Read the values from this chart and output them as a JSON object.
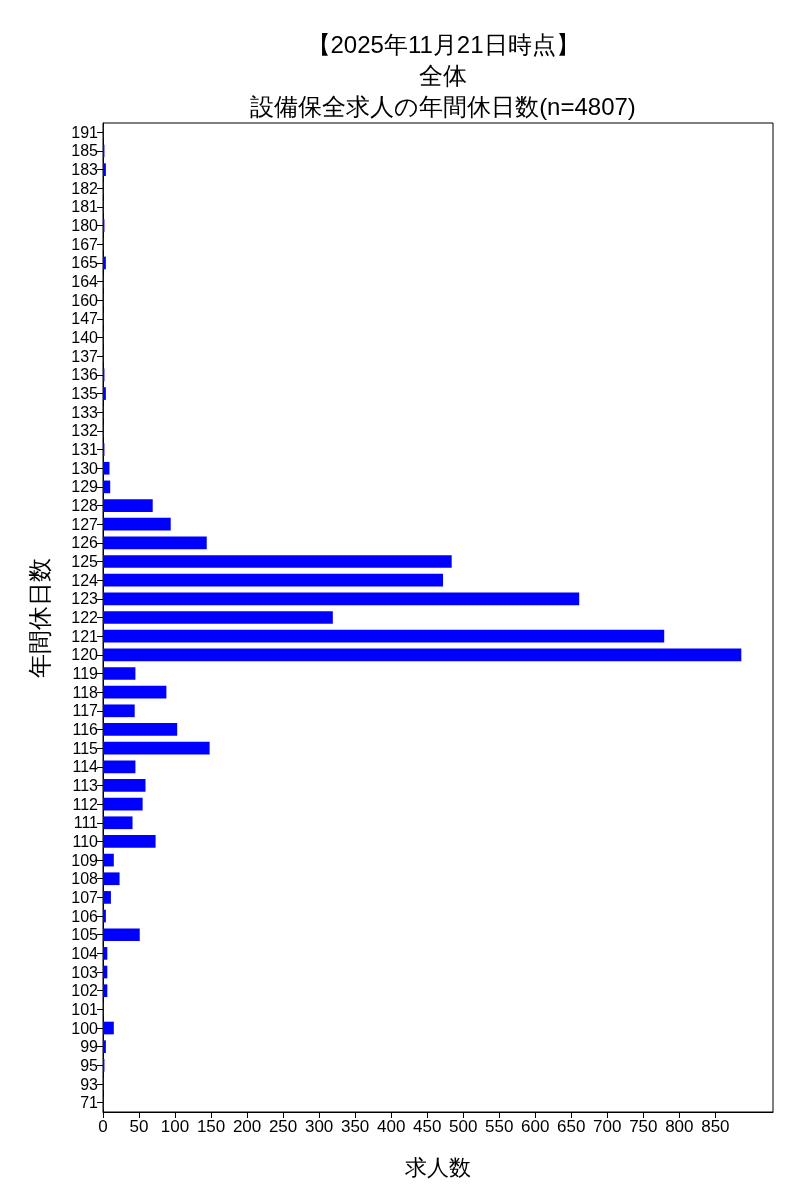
{
  "chart_data": {
    "type": "bar",
    "orientation": "horizontal",
    "annotations": [
      "【2025年11月21日時点】"
    ],
    "subtitle": "全体",
    "title": "設備保全求人の年間休日数(n=4807)",
    "xlabel": "求人数",
    "ylabel": "年間休日数",
    "categories": [
      "191",
      "185",
      "183",
      "182",
      "181",
      "180",
      "167",
      "165",
      "164",
      "160",
      "147",
      "140",
      "137",
      "136",
      "135",
      "133",
      "132",
      "131",
      "130",
      "129",
      "128",
      "127",
      "126",
      "125",
      "124",
      "123",
      "122",
      "121",
      "120",
      "119",
      "118",
      "117",
      "116",
      "115",
      "114",
      "113",
      "112",
      "111",
      "110",
      "109",
      "108",
      "107",
      "106",
      "105",
      "104",
      "103",
      "102",
      "101",
      "100",
      "99",
      "95",
      "93",
      "71"
    ],
    "values": [
      1,
      2,
      4,
      1,
      1,
      2,
      1,
      4,
      1,
      1,
      1,
      1,
      1,
      2,
      4,
      1,
      1,
      2,
      9,
      10,
      69,
      94,
      144,
      484,
      472,
      661,
      319,
      779,
      886,
      45,
      88,
      44,
      103,
      148,
      45,
      59,
      55,
      41,
      73,
      15,
      23,
      11,
      4,
      51,
      6,
      6,
      6,
      1,
      15,
      4,
      2,
      1,
      1
    ],
    "color": "#0000ff",
    "xlim": [
      0,
      930
    ],
    "xticks": [
      0,
      50,
      100,
      150,
      200,
      250,
      300,
      350,
      400,
      450,
      500,
      550,
      600,
      650,
      700,
      750,
      800,
      850
    ]
  }
}
